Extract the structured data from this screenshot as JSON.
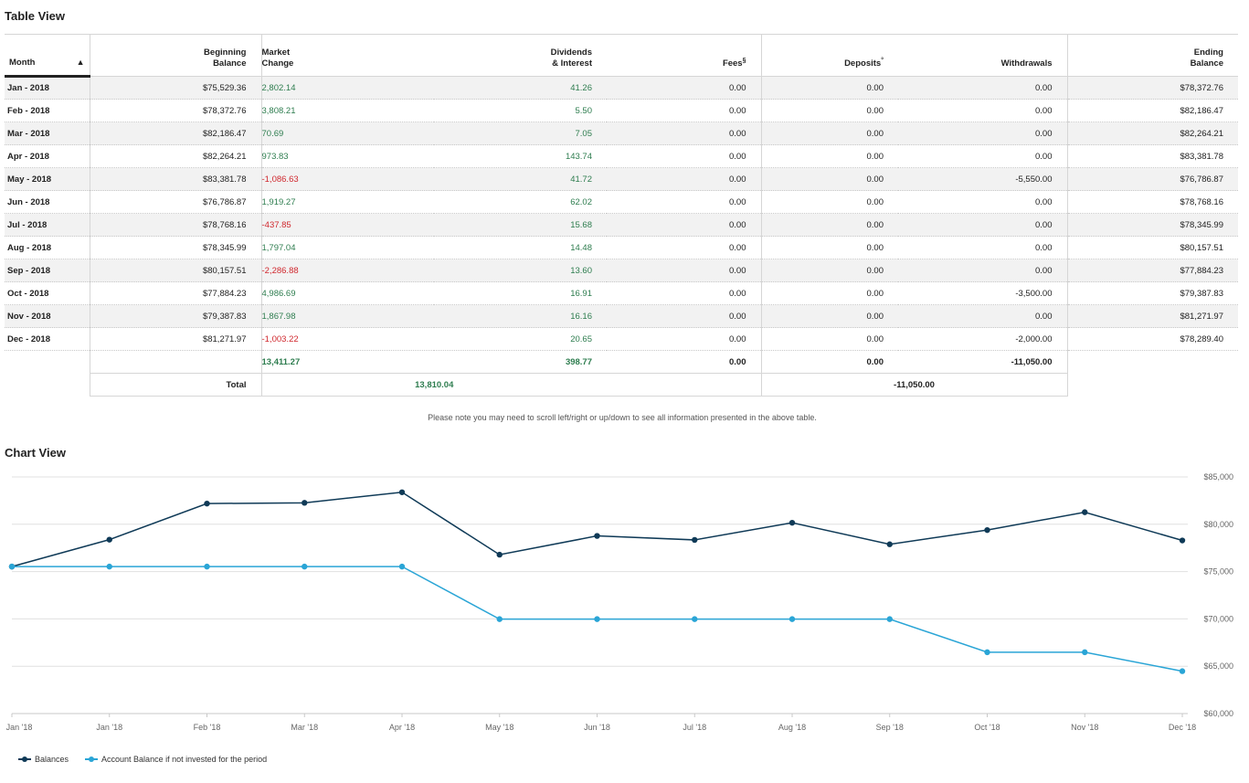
{
  "table_view": {
    "title": "Table View",
    "headers": {
      "month": "Month",
      "beginning_balance": [
        "Beginning",
        "Balance"
      ],
      "market_change": [
        "Market",
        "Change"
      ],
      "dividends_interest": [
        "Dividends",
        "& Interest"
      ],
      "fees": "Fees",
      "fees_mark": "§",
      "deposits": "Deposits",
      "deposits_mark": "°",
      "withdrawals": "Withdrawals",
      "ending_balance": [
        "Ending",
        "Balance"
      ]
    },
    "rows": [
      {
        "month": "Jan - 2018",
        "beginning": "$75,529.36",
        "market": "2,802.14",
        "market_sign": "pos",
        "dividends": "41.26",
        "fees": "0.00",
        "deposits": "0.00",
        "withdrawals": "0.00",
        "ending": "$78,372.76"
      },
      {
        "month": "Feb - 2018",
        "beginning": "$78,372.76",
        "market": "3,808.21",
        "market_sign": "pos",
        "dividends": "5.50",
        "fees": "0.00",
        "deposits": "0.00",
        "withdrawals": "0.00",
        "ending": "$82,186.47"
      },
      {
        "month": "Mar - 2018",
        "beginning": "$82,186.47",
        "market": "70.69",
        "market_sign": "pos",
        "dividends": "7.05",
        "fees": "0.00",
        "deposits": "0.00",
        "withdrawals": "0.00",
        "ending": "$82,264.21"
      },
      {
        "month": "Apr - 2018",
        "beginning": "$82,264.21",
        "market": "973.83",
        "market_sign": "pos",
        "dividends": "143.74",
        "fees": "0.00",
        "deposits": "0.00",
        "withdrawals": "0.00",
        "ending": "$83,381.78"
      },
      {
        "month": "May - 2018",
        "beginning": "$83,381.78",
        "market": "-1,086.63",
        "market_sign": "neg",
        "dividends": "41.72",
        "fees": "0.00",
        "deposits": "0.00",
        "withdrawals": "-5,550.00",
        "ending": "$76,786.87"
      },
      {
        "month": "Jun - 2018",
        "beginning": "$76,786.87",
        "market": "1,919.27",
        "market_sign": "pos",
        "dividends": "62.02",
        "fees": "0.00",
        "deposits": "0.00",
        "withdrawals": "0.00",
        "ending": "$78,768.16"
      },
      {
        "month": "Jul - 2018",
        "beginning": "$78,768.16",
        "market": "-437.85",
        "market_sign": "neg",
        "dividends": "15.68",
        "fees": "0.00",
        "deposits": "0.00",
        "withdrawals": "0.00",
        "ending": "$78,345.99"
      },
      {
        "month": "Aug - 2018",
        "beginning": "$78,345.99",
        "market": "1,797.04",
        "market_sign": "pos",
        "dividends": "14.48",
        "fees": "0.00",
        "deposits": "0.00",
        "withdrawals": "0.00",
        "ending": "$80,157.51"
      },
      {
        "month": "Sep - 2018",
        "beginning": "$80,157.51",
        "market": "-2,286.88",
        "market_sign": "neg",
        "dividends": "13.60",
        "fees": "0.00",
        "deposits": "0.00",
        "withdrawals": "0.00",
        "ending": "$77,884.23"
      },
      {
        "month": "Oct - 2018",
        "beginning": "$77,884.23",
        "market": "4,986.69",
        "market_sign": "pos",
        "dividends": "16.91",
        "fees": "0.00",
        "deposits": "0.00",
        "withdrawals": "-3,500.00",
        "ending": "$79,387.83"
      },
      {
        "month": "Nov - 2018",
        "beginning": "$79,387.83",
        "market": "1,867.98",
        "market_sign": "pos",
        "dividends": "16.16",
        "fees": "0.00",
        "deposits": "0.00",
        "withdrawals": "0.00",
        "ending": "$81,271.97"
      },
      {
        "month": "Dec - 2018",
        "beginning": "$81,271.97",
        "market": "-1,003.22",
        "market_sign": "neg",
        "dividends": "20.65",
        "fees": "0.00",
        "deposits": "0.00",
        "withdrawals": "-2,000.00",
        "ending": "$78,289.40"
      }
    ],
    "subtotals": {
      "market": "13,411.27",
      "dividends": "398.77",
      "fees": "0.00",
      "deposits": "0.00",
      "withdrawals": "-11,050.00"
    },
    "totals": {
      "label": "Total",
      "market_group": "13,810.04",
      "flows_group": "-11,050.00"
    },
    "scroll_note": "Please note you may need to scroll left/right or up/down to see all information presented in the above table."
  },
  "chart_view": {
    "title": "Chart View",
    "chart_data": {
      "type": "line",
      "categories": [
        "Jan '18",
        "Jan '18",
        "Feb '18",
        "Mar '18",
        "Apr '18",
        "May '18",
        "Jun '18",
        "Jul '18",
        "Aug '18",
        "Sep '18",
        "Oct '18",
        "Nov '18",
        "Dec '18"
      ],
      "ylim": [
        60000,
        85000
      ],
      "y_ticks": [
        60000,
        65000,
        70000,
        75000,
        80000,
        85000
      ],
      "y_tick_labels": [
        "$60,000",
        "$65,000",
        "$70,000",
        "$75,000",
        "$80,000",
        "$85,000"
      ],
      "grid": true,
      "legend_position": "bottom-left",
      "series": [
        {
          "name": "Balances",
          "color": "#0f3a57",
          "values": [
            75529.36,
            78372.76,
            82186.47,
            82264.21,
            83381.78,
            76786.87,
            78768.16,
            78345.99,
            80157.51,
            77884.23,
            79387.83,
            81271.97,
            78289.4
          ]
        },
        {
          "name": "Account Balance if not invested for the period",
          "color": "#2aa5d6",
          "values": [
            75529.36,
            75529.36,
            75529.36,
            75529.36,
            75529.36,
            69979.36,
            69979.36,
            69979.36,
            69979.36,
            69979.36,
            66479.36,
            66479.36,
            64479.36
          ]
        }
      ]
    }
  }
}
